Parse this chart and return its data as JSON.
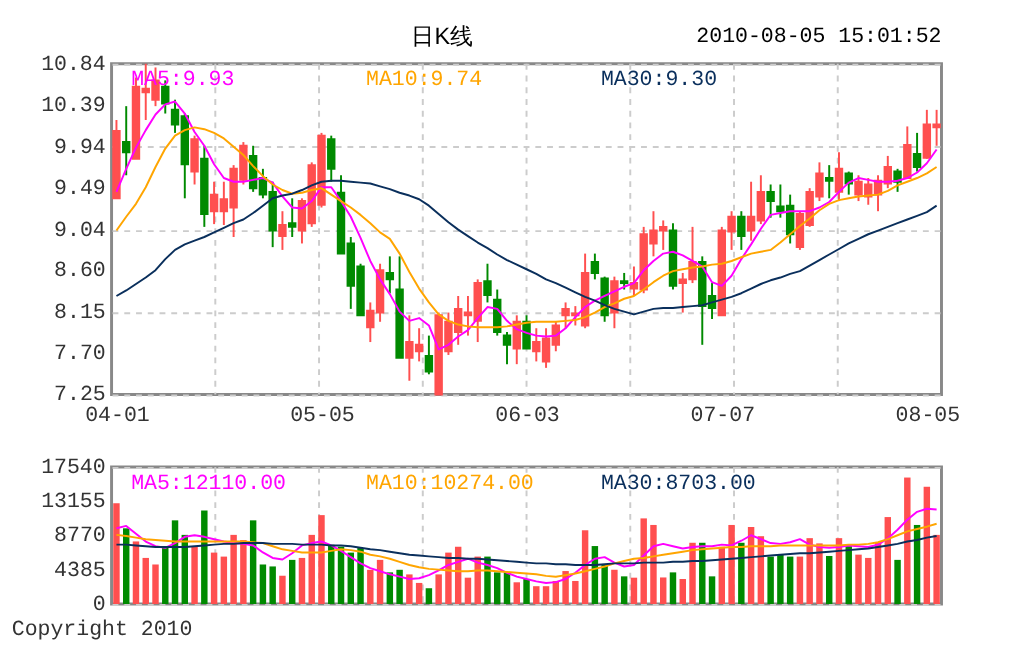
{
  "chart_data": [
    {
      "type": "candlestick",
      "title": "日K线",
      "annotations": [
        "2010-08-05 15:01:52"
      ],
      "categories": [
        "04-01",
        null,
        null,
        null,
        null,
        null,
        null,
        null,
        null,
        null,
        null,
        null,
        null,
        null,
        null,
        null,
        null,
        null,
        null,
        null,
        null,
        "05-05",
        null,
        null,
        null,
        null,
        null,
        null,
        null,
        null,
        null,
        null,
        null,
        null,
        null,
        null,
        null,
        null,
        null,
        null,
        null,
        null,
        "06-03",
        null,
        null,
        null,
        null,
        null,
        null,
        null,
        null,
        null,
        null,
        null,
        null,
        null,
        null,
        null,
        null,
        null,
        null,
        null,
        "07-07",
        null,
        null,
        null,
        null,
        null,
        null,
        null,
        null,
        null,
        null,
        null,
        null,
        null,
        null,
        null,
        null,
        null,
        null,
        null,
        null,
        "08-05",
        null
      ],
      "ohlc": [
        [
          9.38,
          10.23,
          9.38,
          10.11
        ],
        [
          9.99,
          10.38,
          9.63,
          9.88
        ],
        [
          9.81,
          10.69,
          9.81,
          10.59
        ],
        [
          10.53,
          10.84,
          10.23,
          10.57
        ],
        [
          10.45,
          10.8,
          10.38,
          10.66
        ],
        [
          10.59,
          10.66,
          10.3,
          10.41
        ],
        [
          10.34,
          10.45,
          10.09,
          10.18
        ],
        [
          10.27,
          10.3,
          9.38,
          9.75
        ],
        [
          9.67,
          10.06,
          9.53,
          10.02
        ],
        [
          9.81,
          9.95,
          9.07,
          9.21
        ],
        [
          9.24,
          9.56,
          9.1,
          9.42
        ],
        [
          9.24,
          9.56,
          9.09,
          9.37
        ],
        [
          9.28,
          9.74,
          8.96,
          9.7
        ],
        [
          9.58,
          9.99,
          9.53,
          9.95
        ],
        [
          9.84,
          9.95,
          9.45,
          9.49
        ],
        [
          9.6,
          9.7,
          9.38,
          9.42
        ],
        [
          9.45,
          9.56,
          8.85,
          9.03
        ],
        [
          8.97,
          9.24,
          8.82,
          9.09
        ],
        [
          9.11,
          9.38,
          8.96,
          9.07
        ],
        [
          9.03,
          9.38,
          8.89,
          9.35
        ],
        [
          9.11,
          9.77,
          9.07,
          9.74
        ],
        [
          9.31,
          10.09,
          9.28,
          10.06
        ],
        [
          10.02,
          10.06,
          9.56,
          9.7
        ],
        [
          9.44,
          9.63,
          8.78,
          8.78
        ],
        [
          8.89,
          8.96,
          8.18,
          8.43
        ],
        [
          8.64,
          8.67,
          8.11,
          8.11
        ],
        [
          7.98,
          8.25,
          7.82,
          8.16
        ],
        [
          8.14,
          8.67,
          8.04,
          8.6
        ],
        [
          8.57,
          8.75,
          8.35,
          8.5
        ],
        [
          8.39,
          8.75,
          7.65,
          7.65
        ],
        [
          7.65,
          8.11,
          7.4,
          7.82
        ],
        [
          7.72,
          7.97,
          7.61,
          7.79
        ],
        [
          7.67,
          7.89,
          7.47,
          7.5
        ],
        [
          7.25,
          8.14,
          7.25,
          8.11
        ],
        [
          7.72,
          8.14,
          7.68,
          8.04
        ],
        [
          7.93,
          8.32,
          7.79,
          8.18
        ],
        [
          8.11,
          8.32,
          7.89,
          8.14
        ],
        [
          8.05,
          8.5,
          7.82,
          8.46
        ],
        [
          8.48,
          8.67,
          8.25,
          8.33
        ],
        [
          8.28,
          8.39,
          7.89,
          7.93
        ],
        [
          7.89,
          7.93,
          7.58,
          7.79
        ],
        [
          7.75,
          8.11,
          7.58,
          8.04
        ],
        [
          8.04,
          8.11,
          7.75,
          7.75
        ],
        [
          7.72,
          7.97,
          7.61,
          7.82
        ],
        [
          7.61,
          7.97,
          7.54,
          7.86
        ],
        [
          7.79,
          8.04,
          7.72,
          8.0
        ],
        [
          8.11,
          8.25,
          7.97,
          8.18
        ],
        [
          8.11,
          8.21,
          8.0,
          8.13
        ],
        [
          8.0,
          8.78,
          7.97,
          8.57
        ],
        [
          8.69,
          8.78,
          8.5,
          8.57
        ],
        [
          8.51,
          8.53,
          8.04,
          8.11
        ],
        [
          8.14,
          8.53,
          7.97,
          8.48
        ],
        [
          8.48,
          8.57,
          8.39,
          8.46
        ],
        [
          8.4,
          8.64,
          8.32,
          8.46
        ],
        [
          8.39,
          9.07,
          8.35,
          8.99
        ],
        [
          8.89,
          9.24,
          8.75,
          9.03
        ],
        [
          9.03,
          9.14,
          8.82,
          9.07
        ],
        [
          9.03,
          9.11,
          8.39,
          8.43
        ],
        [
          8.46,
          8.57,
          8.14,
          8.5
        ],
        [
          8.5,
          9.07,
          8.46,
          8.69
        ],
        [
          8.69,
          8.75,
          7.79,
          8.21
        ],
        [
          8.32,
          8.46,
          8.07,
          8.19
        ],
        [
          8.11,
          9.07,
          8.11,
          9.03
        ],
        [
          9.02,
          9.24,
          8.82,
          9.18
        ],
        [
          9.18,
          9.24,
          8.82,
          8.97
        ],
        [
          9.03,
          9.56,
          8.92,
          9.18
        ],
        [
          9.14,
          9.63,
          9.1,
          9.45
        ],
        [
          9.45,
          9.53,
          9.17,
          9.35
        ],
        [
          9.29,
          9.53,
          9.17,
          9.24
        ],
        [
          9.3,
          9.42,
          8.89,
          8.99
        ],
        [
          8.85,
          9.24,
          8.82,
          9.21
        ],
        [
          9.09,
          9.49,
          9.07,
          9.45
        ],
        [
          9.4,
          9.77,
          9.35,
          9.65
        ],
        [
          9.6,
          9.74,
          9.38,
          9.57
        ],
        [
          9.45,
          9.88,
          9.35,
          9.7
        ],
        [
          9.65,
          9.67,
          9.42,
          9.54
        ],
        [
          9.42,
          9.63,
          9.35,
          9.56
        ],
        [
          9.4,
          9.6,
          9.31,
          9.53
        ],
        [
          9.42,
          9.63,
          9.24,
          9.57
        ],
        [
          9.54,
          9.84,
          9.49,
          9.72
        ],
        [
          9.67,
          9.7,
          9.45,
          9.56
        ],
        [
          9.6,
          10.16,
          9.6,
          9.96
        ],
        [
          9.86,
          10.09,
          9.67,
          9.72
        ],
        [
          9.82,
          10.34,
          9.81,
          10.18
        ],
        [
          10.15,
          10.34,
          9.95,
          10.18
        ]
      ],
      "colors": [
        "#ff4f4f",
        "#008a00",
        "#ff4f4f",
        "#ff4f4f",
        "#ff4f4f",
        "#008a00",
        "#008a00",
        "#008a00",
        "#ff4f4f",
        "#008a00",
        "#ff4f4f",
        "#ff4f4f",
        "#ff4f4f",
        "#ff4f4f",
        "#008a00",
        "#008a00",
        "#008a00",
        "#ff4f4f",
        "#008a00",
        "#ff4f4f",
        "#ff4f4f",
        "#ff4f4f",
        "#008a00",
        "#008a00",
        "#008a00",
        "#008a00",
        "#ff4f4f",
        "#ff4f4f",
        "#008a00",
        "#008a00",
        "#ff4f4f",
        "#ff4f4f",
        "#008a00",
        "#ff4f4f",
        "#ff4f4f",
        "#ff4f4f",
        "#ff4f4f",
        "#ff4f4f",
        "#008a00",
        "#008a00",
        "#008a00",
        "#ff4f4f",
        "#008a00",
        "#ff4f4f",
        "#ff4f4f",
        "#ff4f4f",
        "#ff4f4f",
        "#ff4f4f",
        "#ff4f4f",
        "#008a00",
        "#008a00",
        "#ff4f4f",
        "#008a00",
        "#ff4f4f",
        "#ff4f4f",
        "#ff4f4f",
        "#ff4f4f",
        "#008a00",
        "#ff4f4f",
        "#ff4f4f",
        "#008a00",
        "#008a00",
        "#ff4f4f",
        "#ff4f4f",
        "#008a00",
        "#ff4f4f",
        "#ff4f4f",
        "#008a00",
        "#008a00",
        "#008a00",
        "#ff4f4f",
        "#ff4f4f",
        "#ff4f4f",
        "#008a00",
        "#ff4f4f",
        "#008a00",
        "#ff4f4f",
        "#ff4f4f",
        "#ff4f4f",
        "#ff4f4f",
        "#008a00",
        "#ff4f4f",
        "#008a00",
        "#ff4f4f",
        "#ff4f4f"
      ],
      "series": [
        {
          "name": "MA5:9.93",
          "type": "line",
          "color": "#ff00ff",
          "values": [
            9.45,
            9.7,
            9.93,
            10.12,
            10.29,
            10.4,
            10.43,
            10.3,
            10.1,
            9.95,
            9.75,
            9.6,
            9.56,
            9.56,
            9.58,
            9.6,
            9.55,
            9.4,
            9.28,
            9.27,
            9.35,
            9.5,
            9.5,
            9.35,
            9.18,
            8.95,
            8.7,
            8.5,
            8.34,
            8.15,
            8.05,
            8.08,
            8.0,
            7.74,
            7.79,
            7.88,
            7.95,
            8.08,
            8.2,
            8.18,
            8.05,
            7.96,
            7.92,
            7.89,
            7.88,
            7.89,
            7.97,
            8.09,
            8.2,
            8.27,
            8.32,
            8.37,
            8.42,
            8.46,
            8.6,
            8.7,
            8.78,
            8.8,
            8.76,
            8.7,
            8.64,
            8.47,
            8.43,
            8.54,
            8.72,
            8.88,
            9.05,
            9.2,
            9.22,
            9.24,
            9.24,
            9.24,
            9.28,
            9.34,
            9.45,
            9.55,
            9.6,
            9.58,
            9.56,
            9.56,
            9.57,
            9.6,
            9.66,
            9.76,
            9.91
          ]
        },
        {
          "name": "MA10:9.74",
          "type": "line",
          "color": "#ffa500",
          "values": [
            9.03,
            9.18,
            9.32,
            9.5,
            9.72,
            9.92,
            10.06,
            10.12,
            10.15,
            10.13,
            10.09,
            10.03,
            9.94,
            9.85,
            9.73,
            9.62,
            9.53,
            9.47,
            9.43,
            9.44,
            9.47,
            9.49,
            9.42,
            9.35,
            9.28,
            9.2,
            9.11,
            9.01,
            8.94,
            8.78,
            8.58,
            8.4,
            8.25,
            8.12,
            8.05,
            8.01,
            7.99,
            7.98,
            7.98,
            7.98,
            7.99,
            8.01,
            8.03,
            8.04,
            8.04,
            8.04,
            8.05,
            8.06,
            8.09,
            8.14,
            8.2,
            8.24,
            8.29,
            8.32,
            8.39,
            8.47,
            8.54,
            8.59,
            8.61,
            8.63,
            8.64,
            8.66,
            8.67,
            8.7,
            8.74,
            8.78,
            8.8,
            8.82,
            8.9,
            8.99,
            9.08,
            9.16,
            9.25,
            9.32,
            9.36,
            9.38,
            9.4,
            9.41,
            9.42,
            9.46,
            9.52,
            9.56,
            9.6,
            9.65,
            9.72
          ]
        },
        {
          "name": "MA30:9.30",
          "type": "line",
          "color": "#0a2f5c",
          "values": [
            8.32,
            8.38,
            8.45,
            8.52,
            8.6,
            8.72,
            8.82,
            8.88,
            8.92,
            8.96,
            9.01,
            9.06,
            9.11,
            9.15,
            9.22,
            9.3,
            9.38,
            9.41,
            9.43,
            9.47,
            9.52,
            9.56,
            9.57,
            9.57,
            9.56,
            9.55,
            9.54,
            9.51,
            9.48,
            9.44,
            9.41,
            9.37,
            9.3,
            9.21,
            9.12,
            9.04,
            8.97,
            8.9,
            8.84,
            8.77,
            8.71,
            8.66,
            8.61,
            8.56,
            8.5,
            8.46,
            8.41,
            8.36,
            8.31,
            8.27,
            8.22,
            8.18,
            8.15,
            8.12,
            8.15,
            8.18,
            8.19,
            8.19,
            8.2,
            8.21,
            8.22,
            8.25,
            8.28,
            8.31,
            8.35,
            8.4,
            8.45,
            8.49,
            8.52,
            8.56,
            8.59,
            8.65,
            8.71,
            8.77,
            8.83,
            8.89,
            8.94,
            8.99,
            9.03,
            9.07,
            9.11,
            9.15,
            9.19,
            9.23,
            9.3
          ]
        }
      ],
      "ylim": [
        7.25,
        10.84
      ],
      "yticks": [
        7.25,
        {
          "value": 7.7,
          "label": "7.70"
        },
        8.15,
        {
          "value": 8.6,
          "label": "8.60"
        },
        9.04,
        9.49,
        9.94,
        10.39,
        10.84
      ],
      "grid": true,
      "legend": "top"
    },
    {
      "type": "bar",
      "annotations": [
        "Copyright 2010"
      ],
      "categories": [
        null,
        null,
        null,
        null,
        null,
        null,
        null,
        null,
        null,
        null,
        null,
        null,
        null,
        null,
        null,
        null,
        null,
        null,
        null,
        null,
        null,
        null,
        null,
        null,
        null,
        null,
        null,
        null,
        null,
        null,
        null,
        null,
        null,
        null,
        null,
        null,
        null,
        null,
        null,
        null,
        null,
        null,
        null,
        null,
        null,
        null,
        null,
        null,
        null,
        null,
        null,
        null,
        null,
        null,
        null,
        null,
        null,
        null,
        null,
        null,
        null,
        null,
        null,
        null,
        null,
        null,
        null,
        null,
        null,
        null,
        null,
        null,
        null,
        null,
        null,
        null,
        null,
        null,
        null,
        null,
        null,
        null,
        null,
        null,
        null
      ],
      "series": [
        {
          "type": "bar",
          "colors": [
            "#ff4f4f",
            "#008a00",
            "#ff4f4f",
            "#ff4f4f",
            "#ff4f4f",
            "#008a00",
            "#008a00",
            "#008a00",
            "#ff4f4f",
            "#008a00",
            "#ff4f4f",
            "#ff4f4f",
            "#ff4f4f",
            "#ff4f4f",
            "#008a00",
            "#008a00",
            "#008a00",
            "#ff4f4f",
            "#008a00",
            "#ff4f4f",
            "#ff4f4f",
            "#ff4f4f",
            "#008a00",
            "#008a00",
            "#008a00",
            "#008a00",
            "#ff4f4f",
            "#ff4f4f",
            "#008a00",
            "#008a00",
            "#ff4f4f",
            "#ff4f4f",
            "#008a00",
            "#ff4f4f",
            "#ff4f4f",
            "#ff4f4f",
            "#ff4f4f",
            "#ff4f4f",
            "#008a00",
            "#008a00",
            "#008a00",
            "#ff4f4f",
            "#008a00",
            "#ff4f4f",
            "#ff4f4f",
            "#ff4f4f",
            "#ff4f4f",
            "#ff4f4f",
            "#ff4f4f",
            "#008a00",
            "#008a00",
            "#ff4f4f",
            "#008a00",
            "#ff4f4f",
            "#ff4f4f",
            "#ff4f4f",
            "#ff4f4f",
            "#008a00",
            "#ff4f4f",
            "#ff4f4f",
            "#008a00",
            "#008a00",
            "#ff4f4f",
            "#ff4f4f",
            "#008a00",
            "#ff4f4f",
            "#ff4f4f",
            "#008a00",
            "#008a00",
            "#008a00",
            "#ff4f4f",
            "#ff4f4f",
            "#ff4f4f",
            "#008a00",
            "#ff4f4f",
            "#008a00",
            "#ff4f4f",
            "#ff4f4f",
            "#ff4f4f",
            "#ff4f4f",
            "#008a00",
            "#ff4f4f",
            "#008a00",
            "#ff4f4f",
            "#ff4f4f"
          ],
          "values": [
            12900,
            9690,
            8010,
            5900,
            5060,
            7170,
            10710,
            8850,
            7420,
            11970,
            6580,
            6070,
            8850,
            8180,
            10710,
            5060,
            4810,
            3620,
            5650,
            5900,
            8850,
            11380,
            7590,
            7330,
            6580,
            7170,
            4380,
            5650,
            4050,
            4380,
            3790,
            2700,
            2020,
            3790,
            6580,
            7330,
            3370,
            6070,
            6070,
            4050,
            4050,
            2780,
            3200,
            2280,
            2280,
            2950,
            4220,
            2950,
            9440,
            7420,
            5060,
            4380,
            3540,
            3370,
            10960,
            10120,
            3400,
            4050,
            3200,
            7840,
            7840,
            3540,
            7330,
            10120,
            7840,
            9860,
            8680,
            6070,
            6320,
            6070,
            6070,
            8430,
            7760,
            6150,
            8430,
            7420,
            6320,
            5900,
            7840,
            11130,
            5650,
            16190,
            10120,
            15010,
            8850
          ]
        },
        {
          "name": "MA5:12110.00",
          "type": "line",
          "color": "#ff00ff",
          "values": [
            9700,
            10000,
            9000,
            8000,
            7400,
            7200,
            7800,
            8600,
            8800,
            8600,
            8300,
            8000,
            7800,
            7700,
            7500,
            6600,
            5900,
            5700,
            6500,
            7500,
            7800,
            8000,
            7500,
            6800,
            6000,
            5200,
            4600,
            4200,
            3800,
            3500,
            3200,
            3300,
            3700,
            4300,
            5000,
            5400,
            5800,
            5300,
            5000,
            4600,
            4000,
            3500,
            3200,
            2900,
            2700,
            2800,
            3200,
            4000,
            5000,
            5800,
            6000,
            5300,
            4800,
            5000,
            6200,
            7400,
            7700,
            7400,
            7100,
            7300,
            7400,
            7400,
            7600,
            7500,
            8100,
            8800,
            8300,
            7800,
            7700,
            7900,
            8300,
            7600,
            7300,
            7200,
            7300,
            7500,
            7400,
            7300,
            7600,
            8400,
            9500,
            10800,
            11800,
            12200,
            12110
          ]
        },
        {
          "name": "MA10:10274.00",
          "type": "line",
          "color": "#ffa500",
          "values": [
            8850,
            8700,
            8500,
            8300,
            8200,
            8100,
            8000,
            8000,
            8000,
            8000,
            8000,
            8000,
            8000,
            8000,
            7900,
            7800,
            7400,
            7000,
            6800,
            6600,
            6600,
            6600,
            6800,
            7000,
            6900,
            6700,
            6300,
            6100,
            5800,
            5400,
            5000,
            4700,
            4500,
            4400,
            4300,
            4200,
            4200,
            4300,
            4300,
            4200,
            4100,
            4000,
            3900,
            3800,
            3600,
            3500,
            3700,
            3900,
            4200,
            4500,
            4800,
            5200,
            5500,
            5800,
            5900,
            6100,
            6300,
            6500,
            6700,
            6900,
            7000,
            7100,
            7200,
            7300,
            7300,
            7400,
            7400,
            7400,
            7500,
            7500,
            7500,
            7500,
            7500,
            7500,
            7500,
            7600,
            7600,
            7700,
            7900,
            8300,
            8800,
            9300,
            9600,
            9900,
            10274
          ]
        },
        {
          "name": "MA30:8703.00",
          "type": "line",
          "color": "#0a2f5c",
          "values": [
            7600,
            7600,
            7500,
            7400,
            7300,
            7300,
            7300,
            7300,
            7400,
            7500,
            7600,
            7700,
            7700,
            7800,
            7800,
            7800,
            7700,
            7700,
            7700,
            7600,
            7600,
            7600,
            7500,
            7500,
            7400,
            7200,
            7000,
            6900,
            6700,
            6500,
            6300,
            6200,
            6100,
            6000,
            5900,
            5900,
            5800,
            5800,
            5700,
            5600,
            5500,
            5400,
            5300,
            5200,
            5200,
            5100,
            5100,
            5000,
            5000,
            5000,
            5100,
            5200,
            5200,
            5200,
            5300,
            5300,
            5300,
            5400,
            5400,
            5500,
            5500,
            5600,
            5700,
            5800,
            5900,
            6000,
            6100,
            6200,
            6300,
            6400,
            6500,
            6500,
            6600,
            6700,
            6800,
            6900,
            7000,
            7100,
            7300,
            7500,
            7700,
            8000,
            8200,
            8500,
            8703
          ]
        }
      ],
      "ylim": [
        0,
        17540
      ],
      "yticks": [
        0,
        4385,
        8770,
        13155,
        17540
      ],
      "grid": true,
      "legend": "top",
      "tick_labels": "y"
    }
  ]
}
